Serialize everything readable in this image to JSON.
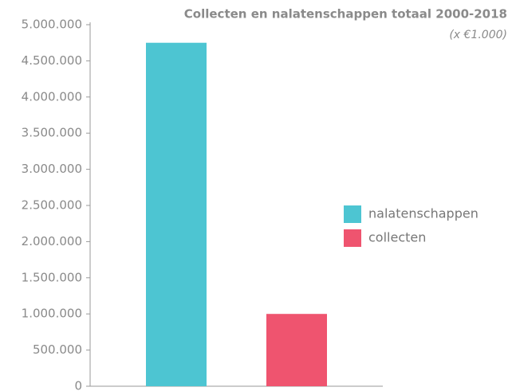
{
  "chart_data": {
    "type": "bar",
    "title": "Collecten en nalatenschappen totaal 2000-2018",
    "subtitle": "(x €1.000)",
    "categories": [
      null
    ],
    "series": [
      {
        "name": "nalatenschappen",
        "color": "#4dc5d2",
        "values": [
          4750000
        ]
      },
      {
        "name": "collecten",
        "color": "#ef546f",
        "values": [
          1000000
        ]
      }
    ],
    "ylim": [
      0,
      5000000
    ],
    "yticks": [
      0,
      {
        "value": 500000,
        "label": "500.000"
      },
      {
        "value": 1000000,
        "label": "1.000.000"
      },
      {
        "value": 1500000,
        "label": "1.500.000"
      },
      {
        "value": 2000000,
        "label": "2.000.000"
      },
      {
        "value": 2500000,
        "label": "2.500.000"
      },
      {
        "value": 3000000,
        "label": "3.000.000"
      },
      {
        "value": 3500000,
        "label": "3.500.000"
      },
      {
        "value": 4000000,
        "label": "4.000.000"
      },
      {
        "value": 4500000,
        "label": "4.500.000"
      },
      {
        "value": 5000000,
        "label": "5.000.000"
      }
    ],
    "legend": "right"
  }
}
